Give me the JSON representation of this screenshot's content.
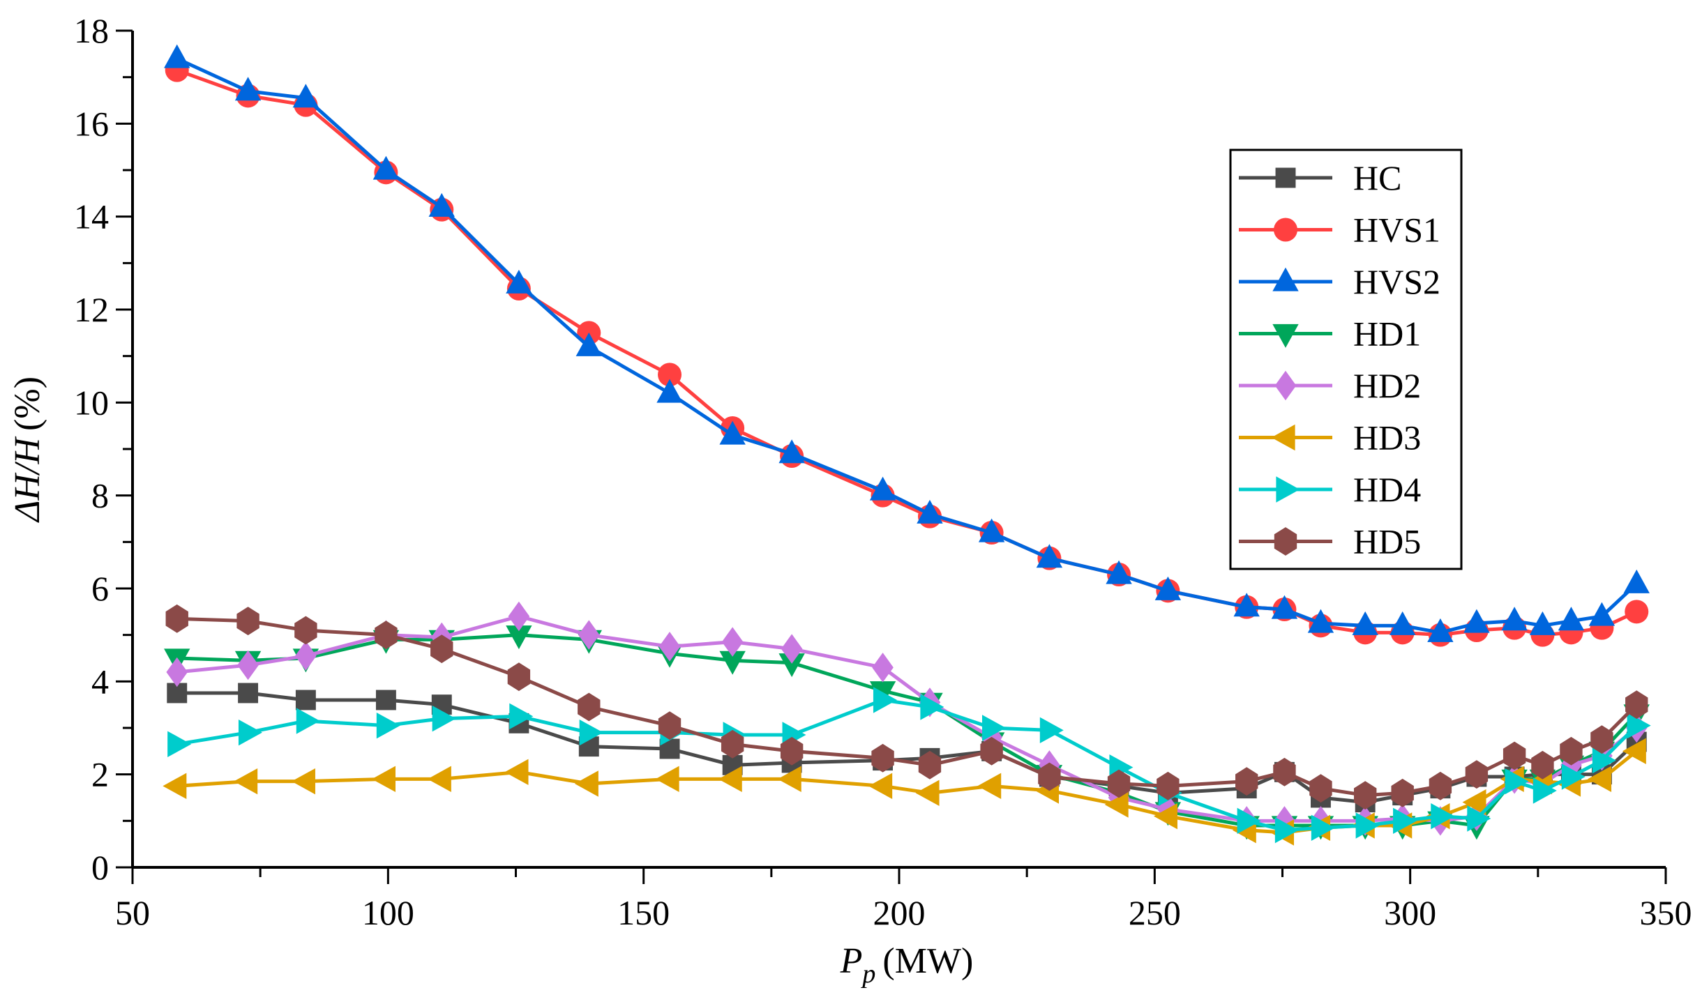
{
  "chart_data": {
    "type": "line",
    "title": "",
    "xlabel": {
      "main": "P",
      "sub": "p",
      "unit": "(MW)"
    },
    "ylabel": {
      "main": "ΔH/H",
      "unit": "(%)"
    },
    "xlim": [
      50,
      350
    ],
    "ylim": [
      0,
      18
    ],
    "xticks": [
      50,
      100,
      150,
      200,
      250,
      300,
      350
    ],
    "yticks": [
      0,
      2,
      4,
      6,
      8,
      10,
      12,
      14,
      16,
      18
    ],
    "grid": false,
    "legend_position": "right",
    "x": [
      58.7,
      72.6,
      83.9,
      99.6,
      110.5,
      125.6,
      139.3,
      155.1,
      167.4,
      179,
      196.8,
      206,
      218.1,
      229.4,
      243,
      252.6,
      268,
      275.4,
      282.5,
      291.2,
      298.5,
      305.9,
      313,
      320.4,
      325.9,
      331.5,
      337.5,
      344.3
    ],
    "series": [
      {
        "name": "HC",
        "color": "#4a4a4a",
        "marker": "square",
        "values": [
          3.75,
          3.75,
          3.6,
          3.6,
          3.5,
          3.1,
          2.6,
          2.55,
          2.2,
          2.25,
          2.3,
          2.35,
          2.5,
          1.95,
          1.75,
          1.6,
          1.7,
          2.05,
          1.5,
          1.4,
          1.55,
          1.7,
          1.95,
          1.95,
          2.0,
          2.0,
          2.0,
          2.7
        ]
      },
      {
        "name": "HVS1",
        "color": "#ff4040",
        "marker": "circle",
        "values": [
          17.15,
          16.6,
          16.4,
          14.95,
          14.15,
          12.45,
          11.5,
          10.6,
          9.45,
          8.85,
          8.0,
          7.55,
          7.2,
          6.65,
          6.3,
          5.95,
          5.6,
          5.55,
          5.2,
          5.05,
          5.05,
          5.0,
          5.1,
          5.15,
          5.0,
          5.05,
          5.15,
          5.5
        ]
      },
      {
        "name": "HVS2",
        "color": "#0066dd",
        "marker": "triangle-up",
        "values": [
          17.4,
          16.7,
          16.55,
          15.0,
          14.2,
          12.55,
          11.2,
          10.2,
          9.3,
          8.9,
          8.1,
          7.6,
          7.2,
          6.65,
          6.3,
          5.95,
          5.6,
          5.55,
          5.25,
          5.2,
          5.2,
          5.05,
          5.25,
          5.3,
          5.2,
          5.3,
          5.4,
          6.1
        ]
      },
      {
        "name": "HD1",
        "color": "#00a65a",
        "marker": "triangle-down",
        "values": [
          4.5,
          4.45,
          4.5,
          4.9,
          4.9,
          5.0,
          4.9,
          4.6,
          4.45,
          4.4,
          3.8,
          3.55,
          2.7,
          2.0,
          1.6,
          1.2,
          0.9,
          0.9,
          0.9,
          0.9,
          0.9,
          1.0,
          0.9,
          1.9,
          1.9,
          2.2,
          2.5,
          3.3
        ]
      },
      {
        "name": "HD2",
        "color": "#c878e0",
        "marker": "diamond",
        "values": [
          4.2,
          4.35,
          4.55,
          5.0,
          4.95,
          5.4,
          5.0,
          4.75,
          4.85,
          4.7,
          4.3,
          3.55,
          2.8,
          2.2,
          1.5,
          1.25,
          1.0,
          1.0,
          1.0,
          1.0,
          1.05,
          1.0,
          1.1,
          1.9,
          1.8,
          2.2,
          2.4,
          3.0
        ]
      },
      {
        "name": "HD3",
        "color": "#e0a000",
        "marker": "triangle-left",
        "values": [
          1.75,
          1.85,
          1.85,
          1.9,
          1.9,
          2.05,
          1.8,
          1.9,
          1.9,
          1.9,
          1.75,
          1.6,
          1.75,
          1.65,
          1.35,
          1.1,
          0.8,
          0.75,
          0.85,
          0.9,
          0.9,
          1.1,
          1.4,
          1.9,
          1.85,
          1.8,
          1.9,
          2.5
        ]
      },
      {
        "name": "HD4",
        "color": "#00cccc",
        "marker": "triangle-right",
        "values": [
          2.65,
          2.9,
          3.15,
          3.05,
          3.2,
          3.25,
          2.9,
          2.9,
          2.85,
          2.85,
          3.6,
          3.45,
          3.0,
          2.95,
          2.15,
          1.6,
          1.0,
          0.8,
          0.85,
          0.9,
          1.0,
          1.1,
          1.05,
          1.85,
          1.65,
          1.95,
          2.3,
          3.05
        ]
      },
      {
        "name": "HD5",
        "color": "#8b4a48",
        "marker": "hexagon",
        "values": [
          5.35,
          5.3,
          5.1,
          5.0,
          4.7,
          4.1,
          3.45,
          3.05,
          2.65,
          2.5,
          2.35,
          2.2,
          2.5,
          1.95,
          1.8,
          1.75,
          1.85,
          2.05,
          1.7,
          1.55,
          1.6,
          1.75,
          2.0,
          2.4,
          2.2,
          2.5,
          2.75,
          3.5
        ]
      }
    ]
  }
}
